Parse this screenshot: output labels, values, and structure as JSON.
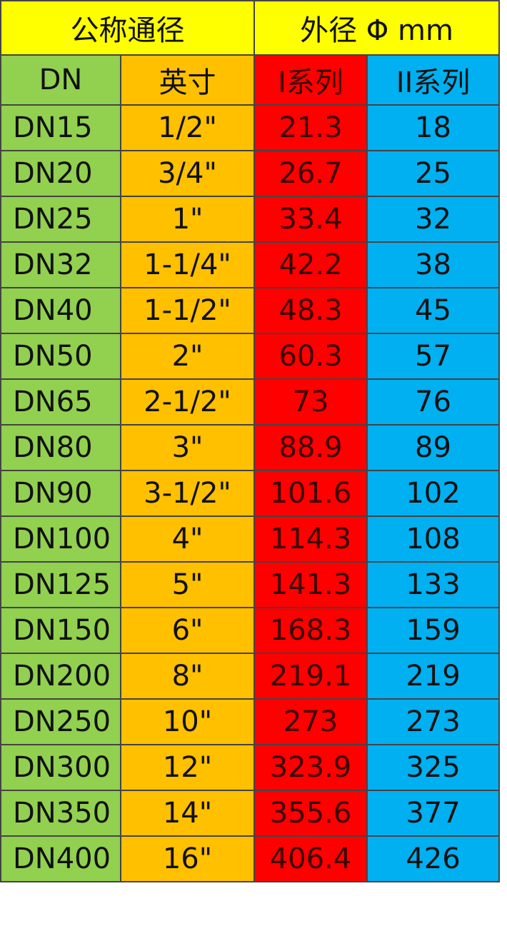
{
  "header": {
    "groups": [
      "公称通径",
      "外径 Φ mm"
    ],
    "columns": [
      "DN",
      "英寸",
      "I系列",
      "II系列"
    ]
  },
  "table": {
    "rows": [
      [
        "DN15",
        "1/2\"",
        "21.3",
        "18"
      ],
      [
        "DN20",
        "3/4\"",
        "26.7",
        "25"
      ],
      [
        "DN25",
        "1\"",
        "33.4",
        "32"
      ],
      [
        "DN32",
        "1-1/4\"",
        "42.2",
        "38"
      ],
      [
        "DN40",
        "1-1/2\"",
        "48.3",
        "45"
      ],
      [
        "DN50",
        "2\"",
        "60.3",
        "57"
      ],
      [
        "DN65",
        "2-1/2\"",
        "73",
        "76"
      ],
      [
        "DN80",
        "3\"",
        "88.9",
        "89"
      ],
      [
        "DN90",
        "3-1/2\"",
        "101.6",
        "102"
      ],
      [
        "DN100",
        "4\"",
        "114.3",
        "108"
      ],
      [
        "DN125",
        "5\"",
        "141.3",
        "133"
      ],
      [
        "DN150",
        "6\"",
        "168.3",
        "159"
      ],
      [
        "DN200",
        "8\"",
        "219.1",
        "219"
      ],
      [
        "DN250",
        "10\"",
        "273",
        "273"
      ],
      [
        "DN300",
        "12\"",
        "323.9",
        "325"
      ],
      [
        "DN350",
        "14\"",
        "355.6",
        "377"
      ],
      [
        "DN400",
        "16\"",
        "406.4",
        "426"
      ]
    ]
  }
}
